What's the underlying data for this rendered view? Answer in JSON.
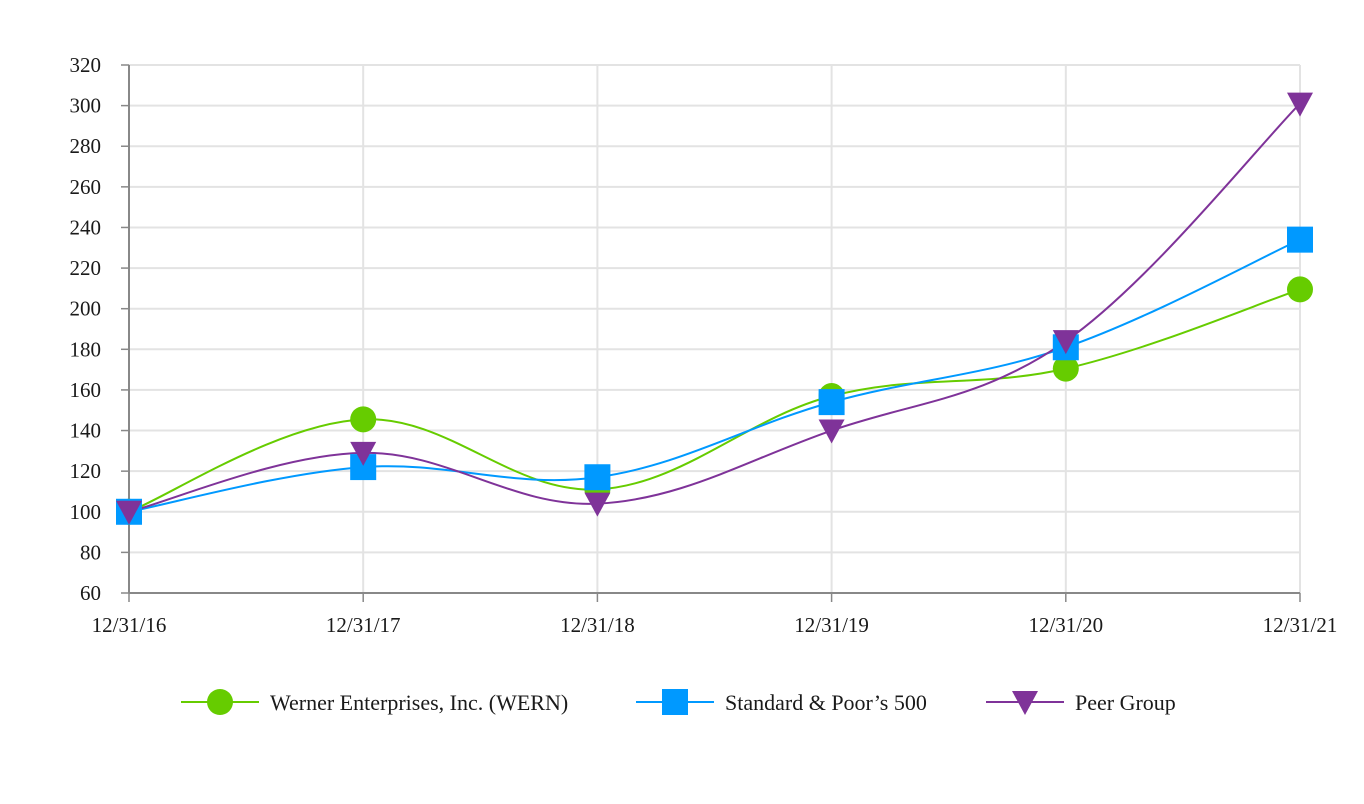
{
  "chart_data": {
    "type": "line",
    "title": "",
    "xlabel": "",
    "ylabel": "",
    "categories": [
      "12/31/16",
      "12/31/17",
      "12/31/18",
      "12/31/19",
      "12/31/20",
      "12/31/21"
    ],
    "ylim": [
      60,
      320
    ],
    "yticks": [
      60,
      80,
      100,
      120,
      140,
      160,
      180,
      200,
      220,
      240,
      260,
      280,
      300,
      320
    ],
    "grid": true,
    "legend_position": "bottom",
    "series": [
      {
        "name": "Werner Enterprises, Inc. (WERN)",
        "values": [
          100,
          145.5,
          111,
          157,
          170.5,
          209.5
        ],
        "color": "#66cc00",
        "marker": "circle"
      },
      {
        "name": "Standard & Poor’s 500",
        "values": [
          100,
          122,
          117,
          154,
          181,
          234
        ],
        "color": "#0099ff",
        "marker": "square"
      },
      {
        "name": "Peer Group",
        "values": [
          100,
          129,
          104,
          140,
          184,
          301
        ],
        "color": "#7f3399",
        "marker": "triangle-down"
      }
    ]
  }
}
